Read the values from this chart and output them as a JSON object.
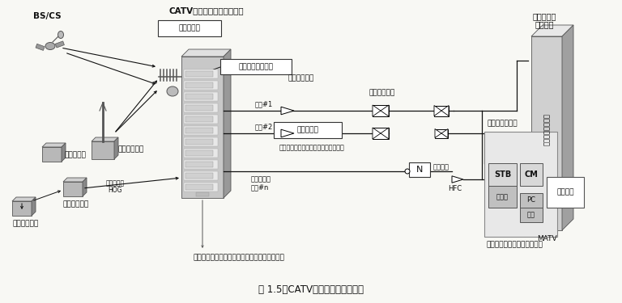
{
  "title": "図 1.5　CATVの基本システム構成",
  "bg_color": "#f5f5f0",
  "text_color": "#111111",
  "labels": {
    "bs_cs": "BS/CS",
    "catv_station": "CATV（ケーブルテレビ）局",
    "reception": "受信点設備",
    "headend": "ヘッドエンド設備",
    "coax": "同軸ケーブル",
    "bidirectional": "双方向増幅器",
    "trunk1": "幹線#1",
    "trunk2": "幹線#2",
    "transmission": "伝送路設備",
    "broadband": "：＜広帯域・双方向・樹枝状ネット＞",
    "fiber": "光ケーブル",
    "trunk_n": "幹線#n",
    "optical_node": "光ノード",
    "hfc": "HFC",
    "collective": "集合住宅共聴設備",
    "matv": "MATV",
    "home": "家庭（戸建て）",
    "stb": "STB",
    "cm": "CM",
    "tv": "テレビ",
    "pc": "PC",
    "phone": "電話",
    "indoor": "宅内設備",
    "triple": "＜トリプルプレイサービス＞",
    "terrestrial": "地上波放送局",
    "satellite": "衛星配信局",
    "program_dist": "番組配信会社",
    "program_prod": "番組制作会社",
    "fiber_hog": "光ケーブル",
    "hog": "HOG",
    "mansion1": "マンション",
    "mansion2": "集合住宅",
    "community": "地域自主放送番組（コミュニティチャンネル）"
  }
}
